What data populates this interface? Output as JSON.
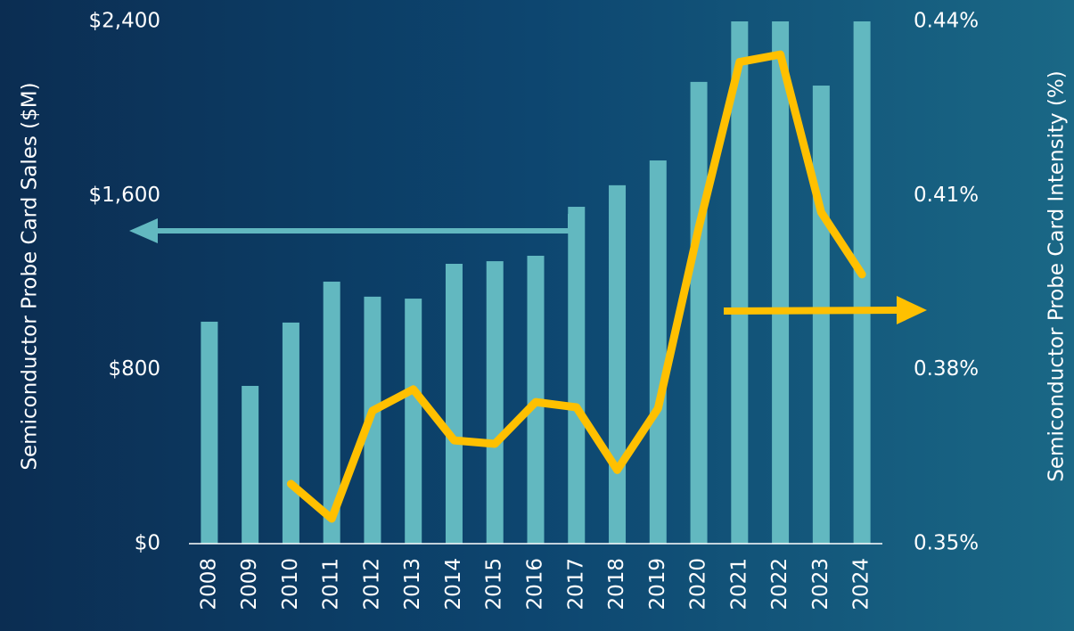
{
  "chart_data": {
    "type": "bar",
    "y_label": "Semiconductor Probe Card Sales ($M)",
    "y2_label": "Semiconductor Probe Card Intensity (%)",
    "categories": [
      "2008",
      "2009",
      "2010",
      "2011",
      "2012",
      "2013",
      "2014",
      "2015",
      "2016",
      "2017",
      "2018",
      "2019",
      "2020",
      "2021",
      "2022",
      "2023",
      "2024"
    ],
    "series": [
      {
        "type": "bar",
        "color": "#62b8c0",
        "values": [
          1020,
          725,
          1016,
          1204,
          1135,
          1126,
          1286,
          1298,
          1323,
          1548,
          1647,
          1761,
          2122,
          2400,
          2400,
          2105,
          2400
        ]
      },
      {
        "type": "line",
        "axis": "y2",
        "color": "#ffc000",
        "values": [
          null,
          null,
          0.3603,
          0.3543,
          0.3729,
          0.3766,
          0.3678,
          0.3672,
          0.3744,
          0.3735,
          0.3627,
          0.3733,
          0.4045,
          0.433,
          0.4343,
          0.4071,
          0.3964
        ]
      }
    ],
    "ylim": [
      0,
      2400
    ],
    "yticks": [
      {
        "value": 0,
        "label": "$0"
      },
      {
        "value": 800,
        "label": "$800"
      },
      {
        "value": 1600,
        "label": "$1,600"
      },
      {
        "value": 2400,
        "label": "$2,400"
      }
    ],
    "y2lim": [
      0.35,
      0.44
    ],
    "y2ticks": [
      {
        "value": 0.35,
        "label": "0.35%"
      },
      {
        "value": 0.38,
        "label": "0.38%"
      },
      {
        "value": 0.41,
        "label": "0.41%"
      },
      {
        "value": 0.44,
        "label": "0.44%"
      }
    ]
  }
}
